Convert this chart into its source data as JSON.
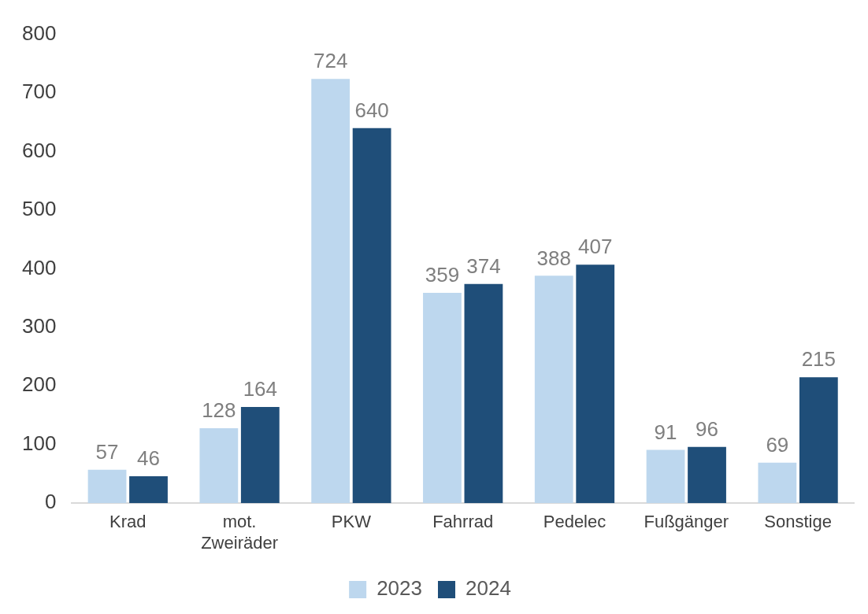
{
  "chart_data": {
    "type": "bar",
    "categories": [
      "Krad",
      "mot. Zweiräder",
      "PKW",
      "Fahrrad",
      "Pedelec",
      "Fußgänger",
      "Sonstige"
    ],
    "series": [
      {
        "name": "2023",
        "color": "#bdd7ee",
        "values": [
          57,
          128,
          724,
          359,
          388,
          91,
          69
        ]
      },
      {
        "name": "2024",
        "color": "#1f4e79",
        "values": [
          46,
          164,
          640,
          374,
          407,
          96,
          215
        ]
      }
    ],
    "ylim": [
      0,
      800
    ],
    "yticks": [
      0,
      100,
      200,
      300,
      400,
      500,
      600,
      700,
      800
    ],
    "grid": false,
    "legend": "bottom",
    "data_labels": true
  }
}
